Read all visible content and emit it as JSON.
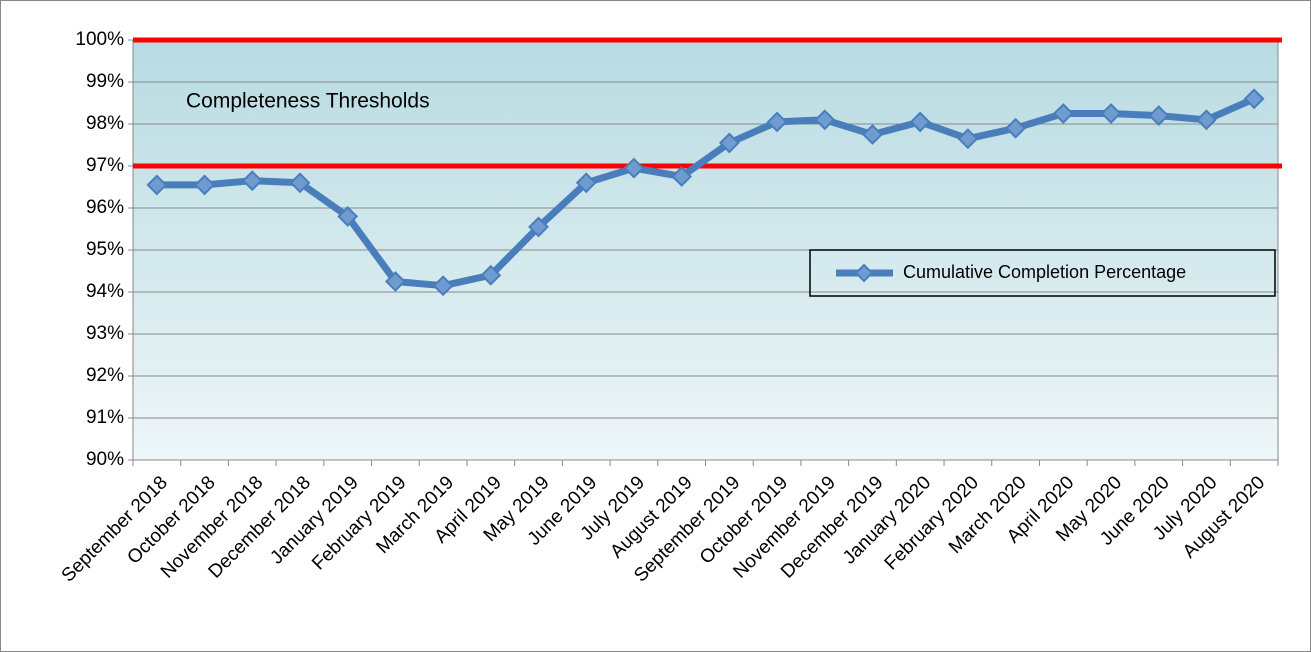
{
  "chart_data": {
    "type": "line",
    "categories": [
      "September 2018",
      "October 2018",
      "November 2018",
      "December 2018",
      "January 2019",
      "February 2019",
      "March 2019",
      "April 2019",
      "May 2019",
      "June 2019",
      "July 2019",
      "August 2019",
      "September 2019",
      "October 2019",
      "November 2019",
      "December 2019",
      "January 2020",
      "February 2020",
      "March 2020",
      "April 2020",
      "May 2020",
      "June 2020",
      "July 2020",
      "August 2020"
    ],
    "series": [
      {
        "name": "Cumulative Completion Percentage",
        "color": "#4a7ebb",
        "values": [
          96.55,
          96.55,
          96.65,
          96.6,
          95.8,
          94.25,
          94.15,
          94.4,
          95.55,
          96.6,
          96.95,
          96.75,
          97.55,
          98.05,
          98.1,
          97.75,
          98.05,
          97.65,
          97.9,
          98.25,
          98.25,
          98.2,
          98.1,
          98.6
        ]
      }
    ],
    "thresholds": {
      "values": [
        100,
        97
      ],
      "color": "#ff0000"
    },
    "annotation": "Completeness Thresholds",
    "ylim": [
      90,
      100
    ],
    "yticks": [
      {
        "value": 90,
        "label": "90%"
      },
      {
        "value": 91,
        "label": "91%"
      },
      {
        "value": 92,
        "label": "92%"
      },
      {
        "value": 93,
        "label": "93%"
      },
      {
        "value": 94,
        "label": "94%"
      },
      {
        "value": 95,
        "label": "95%"
      },
      {
        "value": 96,
        "label": "96%"
      },
      {
        "value": 97,
        "label": "97%"
      },
      {
        "value": 98,
        "label": "98%"
      },
      {
        "value": 99,
        "label": "99%"
      },
      {
        "value": 100,
        "label": "100%"
      }
    ],
    "grid": true,
    "legend": "right"
  }
}
